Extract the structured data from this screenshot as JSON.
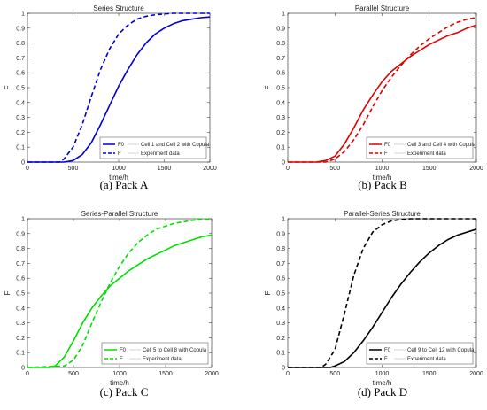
{
  "chart_data": [
    {
      "type": "line",
      "title": "Series Structure",
      "caption": "(a) Pack A",
      "xlabel": "time/h",
      "ylabel": "F",
      "xlim": [
        0,
        2000
      ],
      "ylim": [
        0,
        1
      ],
      "xticks": [
        "0",
        "500",
        "1000",
        "1500",
        "2000"
      ],
      "yticks": [
        "0",
        "0.1",
        "0.2",
        "0.3",
        "0.4",
        "0.5",
        "0.6",
        "0.7",
        "0.8",
        "0.9",
        "1"
      ],
      "color": "#0000cc",
      "legend_position": "bottom-right",
      "legend": [
        {
          "label": "F0",
          "note": "Cell 1 and Cell 2 with Copula"
        },
        {
          "label": "F",
          "note": "Experiment data"
        }
      ],
      "series": [
        {
          "name": "F0",
          "style": "solid",
          "x": [
            0,
            400,
            500,
            600,
            700,
            800,
            900,
            1000,
            1100,
            1200,
            1300,
            1400,
            1500,
            1600,
            1700,
            1800,
            1900,
            2000
          ],
          "y": [
            0,
            0,
            0.01,
            0.05,
            0.13,
            0.25,
            0.38,
            0.51,
            0.62,
            0.72,
            0.8,
            0.86,
            0.9,
            0.93,
            0.95,
            0.96,
            0.97,
            0.975
          ]
        },
        {
          "name": "F",
          "style": "dashed",
          "x": [
            0,
            350,
            400,
            500,
            600,
            700,
            800,
            900,
            1000,
            1100,
            1200,
            1300,
            1400,
            1500,
            1600,
            1700,
            1800,
            2000
          ],
          "y": [
            0,
            0,
            0.02,
            0.1,
            0.25,
            0.44,
            0.62,
            0.76,
            0.86,
            0.92,
            0.96,
            0.98,
            0.99,
            0.995,
            1,
            1,
            1,
            1
          ]
        }
      ]
    },
    {
      "type": "line",
      "title": "Parallel Structure",
      "caption": "(b) Pack B",
      "xlabel": "time/h",
      "ylabel": "F",
      "xlim": [
        0,
        2000
      ],
      "ylim": [
        0,
        1
      ],
      "xticks": [
        "0",
        "500",
        "1000",
        "1500",
        "2000"
      ],
      "yticks": [
        "0",
        "0.1",
        "0.2",
        "0.3",
        "0.4",
        "0.5",
        "0.6",
        "0.7",
        "0.8",
        "0.9",
        "1"
      ],
      "color": "#dd0000",
      "legend_position": "bottom-right",
      "legend": [
        {
          "label": "F0",
          "note": "Cell 3 and Cell 4 with Copula"
        },
        {
          "label": "F",
          "note": "Experiment data"
        }
      ],
      "series": [
        {
          "name": "F0",
          "style": "solid",
          "x": [
            0,
            300,
            400,
            500,
            600,
            700,
            800,
            900,
            1000,
            1100,
            1200,
            1300,
            1400,
            1500,
            1600,
            1700,
            1800,
            1900,
            2000
          ],
          "y": [
            0,
            0,
            0.01,
            0.04,
            0.12,
            0.23,
            0.35,
            0.45,
            0.54,
            0.61,
            0.66,
            0.71,
            0.75,
            0.79,
            0.82,
            0.85,
            0.87,
            0.9,
            0.92
          ]
        },
        {
          "name": "F",
          "style": "dashed",
          "x": [
            0,
            400,
            500,
            600,
            700,
            800,
            900,
            1000,
            1100,
            1200,
            1300,
            1400,
            1500,
            1600,
            1700,
            1800,
            1900,
            2000
          ],
          "y": [
            0,
            0,
            0.02,
            0.07,
            0.15,
            0.25,
            0.37,
            0.48,
            0.57,
            0.65,
            0.72,
            0.78,
            0.83,
            0.87,
            0.91,
            0.94,
            0.96,
            0.97
          ]
        }
      ]
    },
    {
      "type": "line",
      "title": "Series-Parallel Structure",
      "caption": "(c) Pack C",
      "xlabel": "time/h",
      "ylabel": "F",
      "xlim": [
        0,
        2000
      ],
      "ylim": [
        0,
        1
      ],
      "xticks": [
        "0",
        "500",
        "1000",
        "1500",
        "2000"
      ],
      "yticks": [
        "0",
        "0.1",
        "0.2",
        "0.3",
        "0.4",
        "0.5",
        "0.6",
        "0.7",
        "0.8",
        "0.9",
        "1"
      ],
      "color": "#00e000",
      "legend_position": "bottom-right",
      "legend": [
        {
          "label": "F0",
          "note": "Cell 5 to Cell 8 with Copula"
        },
        {
          "label": "F",
          "note": "Experiment data"
        }
      ],
      "series": [
        {
          "name": "F0",
          "style": "solid",
          "x": [
            0,
            250,
            300,
            400,
            500,
            600,
            700,
            800,
            900,
            1000,
            1100,
            1200,
            1300,
            1400,
            1500,
            1600,
            1700,
            1800,
            1900,
            2000
          ],
          "y": [
            0,
            0,
            0.01,
            0.07,
            0.18,
            0.3,
            0.4,
            0.48,
            0.55,
            0.6,
            0.65,
            0.69,
            0.73,
            0.76,
            0.79,
            0.82,
            0.84,
            0.86,
            0.88,
            0.89
          ]
        },
        {
          "name": "F",
          "style": "dashed",
          "x": [
            0,
            400,
            500,
            600,
            700,
            800,
            900,
            1000,
            1100,
            1200,
            1300,
            1400,
            1500,
            1600,
            1700,
            1800,
            1900,
            2000
          ],
          "y": [
            0,
            0.01,
            0.05,
            0.15,
            0.3,
            0.44,
            0.57,
            0.68,
            0.77,
            0.84,
            0.89,
            0.93,
            0.95,
            0.97,
            0.98,
            0.99,
            0.995,
            1
          ]
        }
      ]
    },
    {
      "type": "line",
      "title": "Parallel-Series Structure",
      "caption": "(d) Pack D",
      "xlabel": "time/h",
      "ylabel": "F",
      "xlim": [
        0,
        2000
      ],
      "ylim": [
        0,
        1
      ],
      "xticks": [
        "0",
        "500",
        "1000",
        "1500",
        "2000"
      ],
      "yticks": [
        "0",
        "0.1",
        "0.2",
        "0.3",
        "0.4",
        "0.5",
        "0.6",
        "0.7",
        "0.8",
        "0.9",
        "1"
      ],
      "color": "#000000",
      "legend_position": "bottom-right",
      "legend": [
        {
          "label": "F0",
          "note": "Cell 9 to Cell 12 with Copula"
        },
        {
          "label": "F",
          "note": "Experiment data"
        }
      ],
      "series": [
        {
          "name": "F0",
          "style": "solid",
          "x": [
            0,
            450,
            500,
            600,
            700,
            800,
            900,
            1000,
            1100,
            1200,
            1300,
            1400,
            1500,
            1600,
            1700,
            1800,
            1900,
            2000
          ],
          "y": [
            0,
            0,
            0.01,
            0.04,
            0.1,
            0.18,
            0.27,
            0.37,
            0.47,
            0.56,
            0.64,
            0.71,
            0.77,
            0.82,
            0.86,
            0.89,
            0.91,
            0.93
          ]
        },
        {
          "name": "F",
          "style": "dashed",
          "x": [
            0,
            350,
            400,
            500,
            600,
            700,
            800,
            900,
            1000,
            1100,
            1200,
            1300,
            1400,
            1500,
            1600,
            2000
          ],
          "y": [
            0,
            0,
            0.02,
            0.12,
            0.36,
            0.62,
            0.8,
            0.91,
            0.96,
            0.985,
            0.995,
            1,
            1,
            1,
            1,
            1
          ]
        }
      ]
    }
  ]
}
